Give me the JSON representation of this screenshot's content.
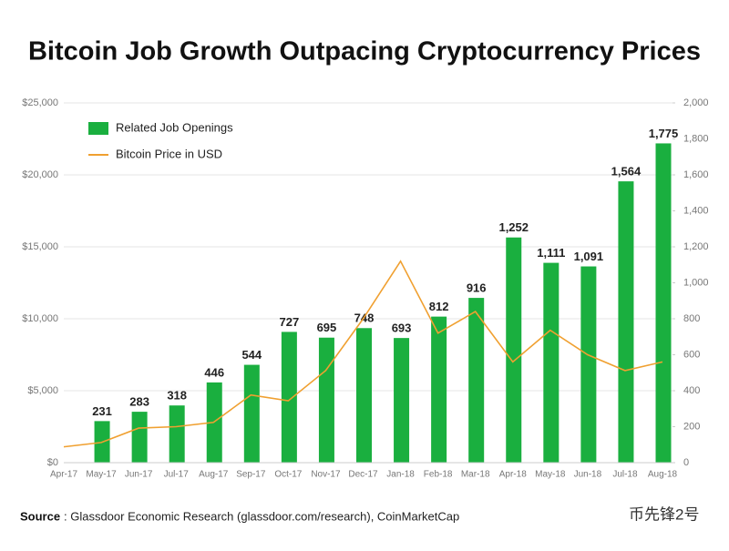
{
  "chart_data": {
    "type": "bar-line",
    "title": "Bitcoin Job Growth Outpacing Cryptocurrency Prices",
    "categories": [
      "Apr-17",
      "May-17",
      "Jun-17",
      "Jul-17",
      "Aug-17",
      "Sep-17",
      "Oct-17",
      "Nov-17",
      "Dec-17",
      "Jan-18",
      "Feb-18",
      "Mar-18",
      "Apr-18",
      "May-18",
      "Jun-18",
      "Jul-18",
      "Aug-18"
    ],
    "series": [
      {
        "name": "Related Job Openings",
        "color": "#1aaf3f",
        "type": "bar",
        "axis": "y2",
        "values": [
          null,
          231,
          283,
          318,
          446,
          544,
          727,
          695,
          748,
          693,
          812,
          916,
          1252,
          1111,
          1091,
          1564,
          1775
        ],
        "value_labels": [
          null,
          231,
          283,
          318,
          446,
          544,
          727,
          695,
          748,
          693,
          812,
          916,
          "1,252",
          "1,111",
          "1,091",
          "1,564",
          "1,775"
        ]
      },
      {
        "name": "Bitcoin Price in USD",
        "color": "#f0a030",
        "type": "line",
        "values": [
          1100,
          1400,
          2400,
          2500,
          2800,
          4700,
          4300,
          6400,
          10000,
          14000,
          9000,
          10500,
          7000,
          9200,
          7500,
          6400,
          7000
        ]
      }
    ],
    "ylim": [
      0,
      25000
    ],
    "yticks": [
      {
        "value": 0,
        "label": "$0"
      },
      {
        "value": 5000,
        "label": "$5,000"
      },
      {
        "value": 10000,
        "label": "$10,000"
      },
      {
        "value": 15000,
        "label": "$15,000"
      },
      {
        "value": 20000,
        "label": "$20,000"
      },
      {
        "value": 25000,
        "label": "$25,000"
      }
    ],
    "y2lim": [
      0,
      2000
    ],
    "y2ticks": [
      0,
      200,
      400,
      600,
      800,
      {
        "value": 1000,
        "label": "1,000"
      },
      {
        "value": 1200,
        "label": "1,200"
      },
      {
        "value": 1400,
        "label": "1,400"
      },
      {
        "value": 1600,
        "label": "1,600"
      },
      {
        "value": 1800,
        "label": "1,800"
      },
      {
        "value": 2000,
        "label": "2,000"
      }
    ],
    "grid": true,
    "legend": "top-left",
    "source_label": "Source",
    "source_text": ": Glassdoor Economic Research (glassdoor.com/research), CoinMarketCap",
    "watermark": "币先锋2号"
  }
}
